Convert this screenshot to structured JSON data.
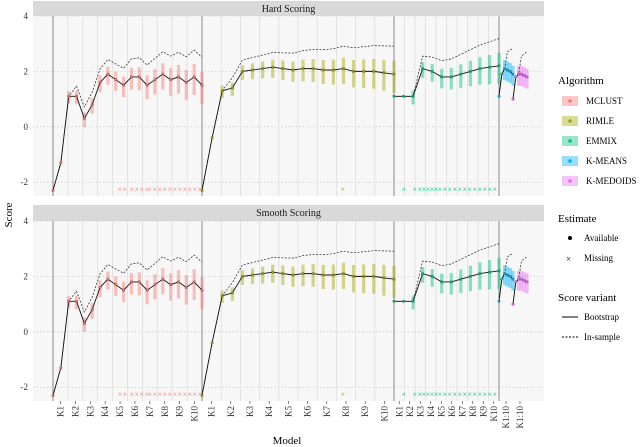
{
  "chart_data": {
    "type": "line",
    "title": "",
    "xlabel": "Model",
    "ylabel": "Score",
    "ylim": [
      -2.5,
      4
    ],
    "y_ticks": [
      "4",
      "2",
      "0",
      "-2"
    ],
    "y_tick_values": [
      4,
      2,
      0,
      -2
    ],
    "facets": [
      "Hard Scoring",
      "Smooth Scoring"
    ],
    "groups": [
      {
        "name": "MCLUST",
        "color": "#f8766d",
        "n_models": 10,
        "tick_labels": [
          "K1",
          "K2",
          "K3",
          "K4",
          "K5",
          "K6",
          "K7",
          "K8",
          "K9",
          "K10"
        ]
      },
      {
        "name": "RIMLE",
        "color": "#a3a500",
        "n_models": 10,
        "tick_labels": [
          "K1",
          "K2",
          "K3",
          "K4",
          "K5",
          "K6",
          "K7",
          "K8",
          "K9",
          "K10"
        ]
      },
      {
        "name": "EMMIX",
        "color": "#00bf7d",
        "n_models": 10,
        "tick_labels": [
          "K1",
          "K2",
          "K3",
          "K4",
          "K5",
          "K6",
          "K7",
          "K8",
          "K9",
          "K10"
        ]
      },
      {
        "name": "K-MEANS",
        "color": "#00b0f6",
        "n_models": 1,
        "tick_labels": [
          "K1:10"
        ]
      },
      {
        "name": "K-MEDOIDS",
        "color": "#e76bf3",
        "n_models": 1,
        "tick_labels": [
          "K1:10"
        ]
      }
    ],
    "series": [
      {
        "name": "Hard Scoring",
        "groups": [
          {
            "group": "MCLUST",
            "estimate": [
              -2.3,
              -1.3,
              1.1,
              1.1,
              0.3,
              0.8,
              1.6,
              1.9,
              1.7,
              1.5,
              1.8,
              1.8,
              1.5,
              1.7,
              1.9,
              1.7,
              1.8,
              1.6,
              1.8,
              1.5
            ]
          },
          {
            "group": "RIMLE",
            "estimate": [
              -2.3,
              -0.4,
              1.3,
              1.4,
              2.0,
              2.05,
              2.1,
              2.15,
              2.1,
              2.05,
              2.1,
              2.1,
              2.05,
              2.05,
              2.1,
              2.0,
              2.0,
              2.0,
              1.95,
              1.9
            ]
          },
          {
            "group": "EMMIX",
            "estimate": [
              1.1,
              1.1,
              1.1,
              2.1,
              2.0,
              1.8,
              1.8,
              1.9,
              2.0,
              2.1,
              2.15,
              2.2
            ]
          },
          {
            "group": "K-MEANS",
            "estimate": [
              1.1,
              1.9,
              2.1,
              2.05,
              2.0,
              1.9
            ]
          },
          {
            "group": "K-MEDOIDS",
            "estimate": [
              1.0,
              1.8,
              1.9,
              1.9,
              1.85,
              1.8
            ]
          }
        ]
      },
      {
        "name": "Smooth Scoring",
        "groups": [
          {
            "group": "MCLUST",
            "estimate": [
              -2.3,
              -1.3,
              1.1,
              1.1,
              0.3,
              0.8,
              1.6,
              1.9,
              1.7,
              1.5,
              1.8,
              1.8,
              1.5,
              1.7,
              1.9,
              1.7,
              1.8,
              1.6,
              1.8,
              1.5
            ]
          },
          {
            "group": "RIMLE",
            "estimate": [
              -2.3,
              -0.4,
              1.3,
              1.4,
              2.0,
              2.05,
              2.1,
              2.15,
              2.1,
              2.05,
              2.1,
              2.1,
              2.05,
              2.05,
              2.1,
              2.0,
              2.0,
              2.0,
              1.95,
              1.9
            ]
          },
          {
            "group": "EMMIX",
            "estimate": [
              1.1,
              1.1,
              1.1,
              2.1,
              2.0,
              1.8,
              1.8,
              1.9,
              2.0,
              2.1,
              2.15,
              2.2
            ]
          },
          {
            "group": "K-MEANS",
            "estimate": [
              1.1,
              1.9,
              2.1,
              2.05,
              2.0,
              1.9
            ]
          },
          {
            "group": "K-MEDOIDS",
            "estimate": [
              1.0,
              1.8,
              1.9,
              1.9,
              1.85,
              1.8
            ]
          }
        ]
      }
    ],
    "missing_estimates": [
      {
        "group": "MCLUST",
        "y": -2.25
      },
      {
        "group": "RIMLE",
        "y": -2.25
      },
      {
        "group": "EMMIX",
        "y": -2.25
      }
    ],
    "legend": {
      "algorithm_title": "Algorithm",
      "algorithm_items": [
        "MCLUST",
        "RIMLE",
        "EMMIX",
        "K-MEANS",
        "K-MEDOIDS"
      ],
      "estimate_title": "Estimate",
      "estimate_items": [
        "Available",
        "Missing"
      ],
      "variant_title": "Score variant",
      "variant_items": [
        "Bootstrap",
        "In-sample"
      ]
    }
  }
}
